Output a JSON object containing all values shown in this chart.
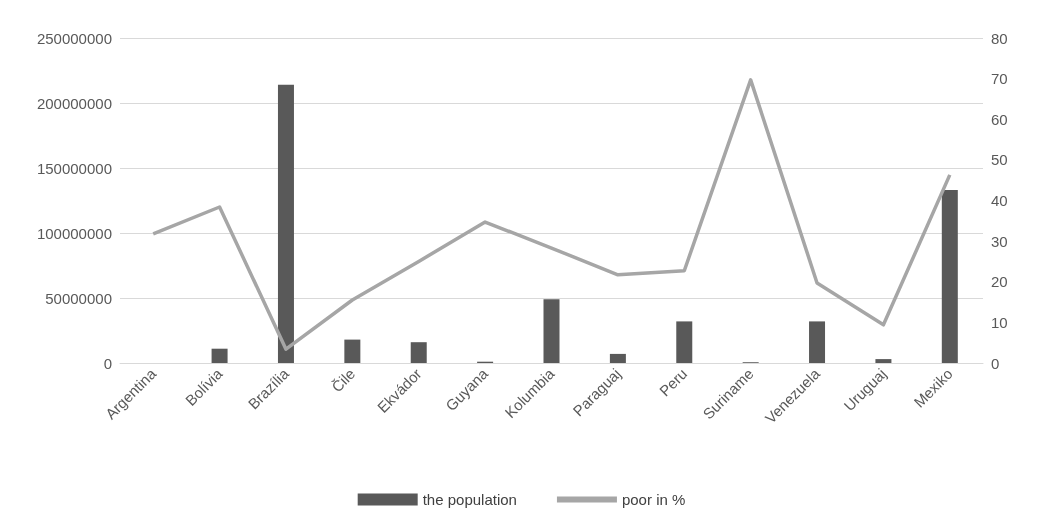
{
  "chart_data": {
    "type": "bar",
    "categories": [
      "Argentina",
      "Bolívia",
      "Brazília",
      "Čile",
      "Ekvádor",
      "Guyana",
      "Kolumbia",
      "Paraguaj",
      "Peru",
      "Suriname",
      "Venezuela",
      "Uruguaj",
      "Mexiko"
    ],
    "series": [
      {
        "name": "the population",
        "color": "#595959",
        "values": [
          0,
          11000000,
          214000000,
          18000000,
          16000000,
          1000000,
          49000000,
          7000000,
          32000000,
          600000,
          32000000,
          3000000,
          133000000
        ]
      },
      {
        "name": "poor in %",
        "type": "line",
        "axis": "y2",
        "color": "#a6a6a6",
        "values": [
          31.8,
          38.4,
          3.4,
          15.5,
          25,
          34.7,
          28.3,
          21.7,
          22.7,
          69.7,
          19.7,
          9.4,
          46.3
        ]
      }
    ],
    "ylim": [
      0,
      250000000
    ],
    "yticks": [
      0,
      50000000,
      100000000,
      150000000,
      200000000,
      250000000
    ],
    "y2lim": [
      0,
      80
    ],
    "y2ticks": [
      0,
      10,
      20,
      30,
      40,
      50,
      60,
      70,
      80
    ],
    "grid": "y",
    "legend": "bottom",
    "marker": "none"
  }
}
